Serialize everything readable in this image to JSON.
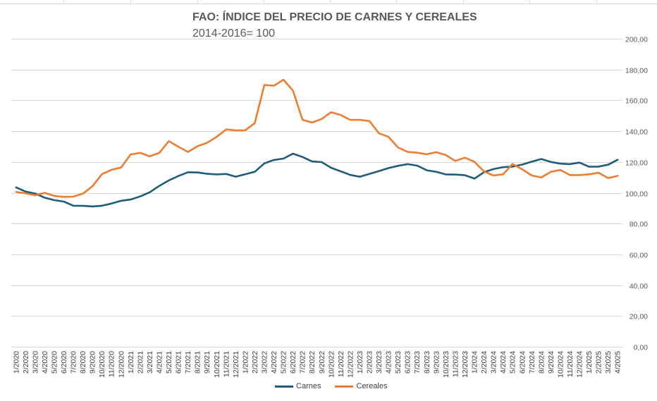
{
  "chart_data": {
    "type": "line",
    "title": "FAO: ÍNDICE DEL PRECIO DE CARNES Y CEREALES",
    "subtitle": "2014-2016= 100",
    "ylim": [
      0,
      200
    ],
    "yticks": [
      "0,00",
      "20,00",
      "40,00",
      "60,00",
      "80,00",
      "100,00",
      "120,00",
      "140,00",
      "160,00",
      "180,00",
      "200,00"
    ],
    "grid": true,
    "legend_position": "bottom",
    "categories": [
      "1/2020",
      "2/2020",
      "3/2020",
      "4/2020",
      "5/2020",
      "6/2020",
      "7/2020",
      "8/2020",
      "9/2020",
      "10/2020",
      "11/2020",
      "12/2020",
      "1/2021",
      "2/2021",
      "3/2021",
      "4/2021",
      "5/2021",
      "6/2021",
      "7/2021",
      "8/2021",
      "9/2021",
      "10/2021",
      "11/2021",
      "12/2021",
      "1/2022",
      "2/2022",
      "3/2022",
      "4/2022",
      "5/2022",
      "6/2022",
      "7/2022",
      "8/2022",
      "9/2022",
      "10/2022",
      "11/2022",
      "12/2022",
      "1/2023",
      "2/2023",
      "3/2023",
      "4/2023",
      "5/2023",
      "6/2023",
      "7/2023",
      "8/2023",
      "9/2023",
      "10/2023",
      "11/2023",
      "12/2023",
      "1/2024",
      "2/2024",
      "3/2024",
      "4/2024",
      "5/2024",
      "6/2024",
      "7/2024",
      "8/2024",
      "9/2024",
      "10/2024",
      "11/2024",
      "12/2024",
      "1/2025",
      "2/2025",
      "3/2025",
      "4/2025"
    ],
    "series": [
      {
        "name": "Carnes",
        "color": "#1f5c7a",
        "values": [
          103.5,
          100.8,
          99.5,
          96.8,
          95.2,
          94.3,
          91.6,
          91.5,
          91.1,
          91.6,
          93.0,
          94.8,
          95.6,
          97.6,
          100.3,
          104.5,
          108.0,
          110.9,
          113.3,
          113.2,
          112.3,
          111.9,
          112.2,
          110.4,
          112.0,
          113.6,
          119.1,
          121.3,
          122.2,
          125.4,
          123.2,
          120.3,
          119.9,
          116.2,
          113.9,
          111.6,
          110.4,
          112.2,
          114.1,
          116.0,
          117.5,
          118.6,
          117.6,
          114.6,
          113.6,
          111.9,
          111.8,
          111.4,
          109.2,
          113.3,
          115.4,
          116.6,
          117.0,
          118.3,
          120.2,
          121.9,
          120.0,
          118.9,
          118.6,
          119.6,
          116.9,
          117.0,
          118.2,
          121.4
        ]
      },
      {
        "name": "Cereales",
        "color": "#ed7d31",
        "values": [
          100.5,
          99.6,
          98.4,
          99.9,
          98.0,
          97.3,
          97.5,
          99.4,
          104.2,
          112.1,
          114.9,
          116.4,
          124.9,
          125.9,
          123.6,
          125.9,
          133.5,
          129.9,
          126.5,
          130.2,
          132.4,
          136.3,
          141.1,
          140.5,
          140.6,
          145.2,
          170.0,
          169.5,
          173.4,
          166.3,
          147.3,
          145.6,
          147.9,
          152.3,
          150.5,
          147.3,
          147.3,
          146.6,
          138.6,
          136.3,
          129.4,
          126.6,
          126.0,
          125.0,
          126.3,
          124.5,
          120.7,
          122.8,
          120.1,
          113.8,
          111.2,
          112.0,
          118.7,
          115.2,
          111.2,
          109.9,
          113.6,
          114.8,
          111.5,
          111.5,
          112.0,
          113.0,
          109.5,
          111.0
        ]
      }
    ]
  }
}
